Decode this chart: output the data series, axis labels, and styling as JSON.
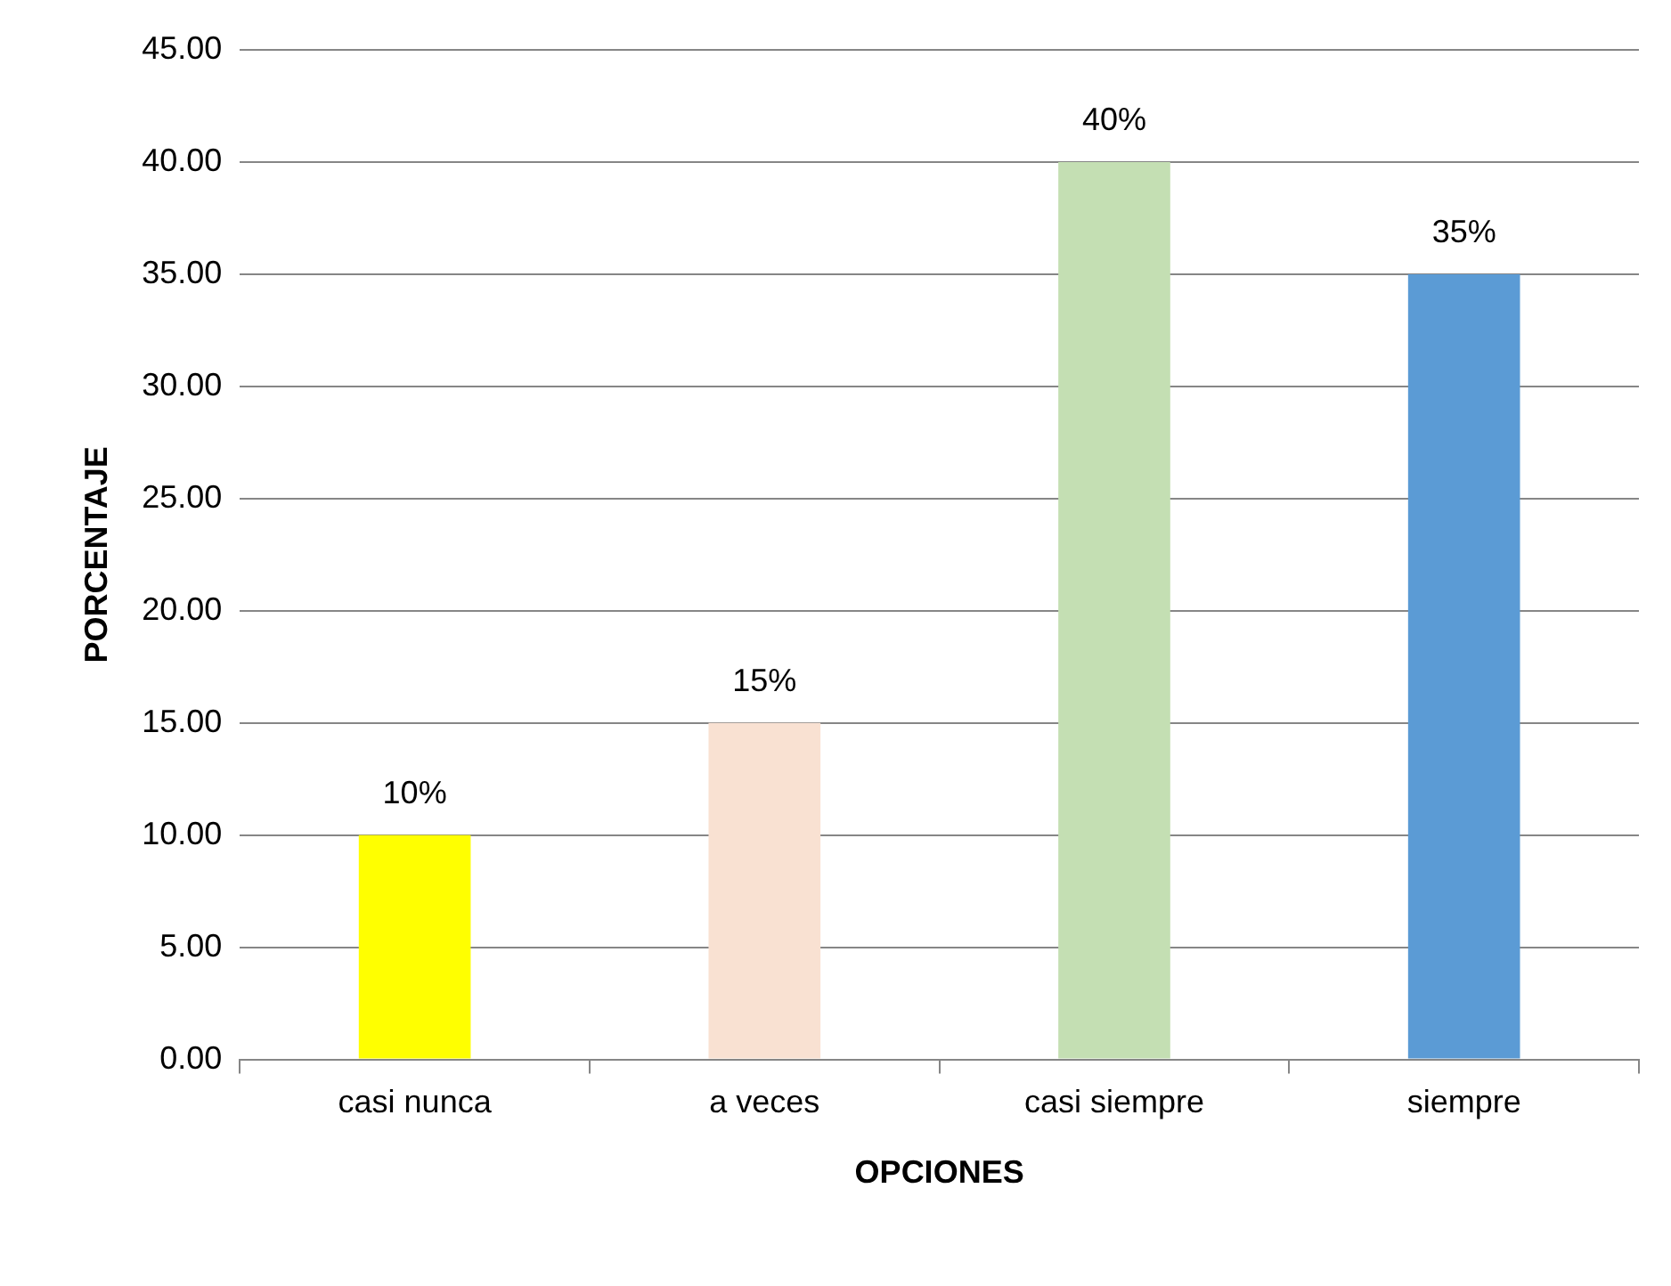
{
  "chart_data": {
    "type": "bar",
    "xlabel": "OPCIONES",
    "ylabel": "PORCENTAJE",
    "categories": [
      "casi nunca",
      "a veces",
      "casi siempre",
      "siempre"
    ],
    "values": [
      10,
      15,
      40,
      35
    ],
    "colors": [
      "#ffff00",
      "#f9e1d2",
      "#c4dfb3",
      "#5b9bd5"
    ],
    "value_labels": [
      "10%",
      "15%",
      "40%",
      "35%"
    ],
    "ylim": [
      0,
      45
    ],
    "yticks": [
      {
        "value": 0,
        "label": "0.00"
      },
      {
        "value": 5,
        "label": "5.00"
      },
      {
        "value": 10,
        "label": "10.00"
      },
      {
        "value": 15,
        "label": "15.00"
      },
      {
        "value": 20,
        "label": "20.00"
      },
      {
        "value": 25,
        "label": "25.00"
      },
      {
        "value": 30,
        "label": "30.00"
      },
      {
        "value": 35,
        "label": "35.00"
      },
      {
        "value": 40,
        "label": "40.00"
      },
      {
        "value": 45,
        "label": "45.00"
      }
    ],
    "grid": "y",
    "legend": false
  }
}
